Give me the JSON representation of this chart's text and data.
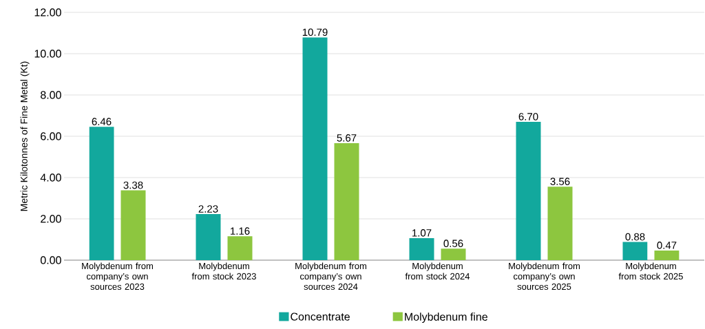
{
  "chart_data": {
    "type": "bar",
    "ylabel": "Metric Kilotonnes of Fine Metal (Kt)",
    "categories": [
      "Molybdenum from company’s own sources 2023",
      "Molybdenum from stock 2023",
      "Molybdenum from company’s own sources 2024",
      "Molybdenum from stock 2024",
      "Molybdenum from company’s own sources 2025",
      "Molybdenum from stock 2025"
    ],
    "series": [
      {
        "name": "Concentrate",
        "color": "#12a89d",
        "values": [
          6.46,
          2.23,
          10.79,
          1.07,
          6.7,
          0.88
        ],
        "value_labels": [
          "6.46",
          "2.23",
          "10.79",
          "1.07",
          "6.70",
          "0.88"
        ]
      },
      {
        "name": "Molybdenum fine",
        "color": "#8dc63f",
        "values": [
          3.38,
          1.16,
          5.67,
          0.56,
          3.56,
          0.47
        ],
        "value_labels": [
          "3.38",
          "1.16",
          "5.67",
          "0.56",
          "3.56",
          "0.47"
        ]
      }
    ],
    "ylim": [
      0,
      12
    ],
    "yticks": [
      {
        "value": 0,
        "label": "0.00"
      },
      {
        "value": 2,
        "label": "2.00"
      },
      {
        "value": 4,
        "label": "4.00"
      },
      {
        "value": 6,
        "label": "6.00"
      },
      {
        "value": 8,
        "label": "8.00"
      },
      {
        "value": 10,
        "label": "10.00"
      },
      {
        "value": 12,
        "label": "12.00"
      }
    ],
    "grid": "y",
    "legend": "bottom"
  }
}
